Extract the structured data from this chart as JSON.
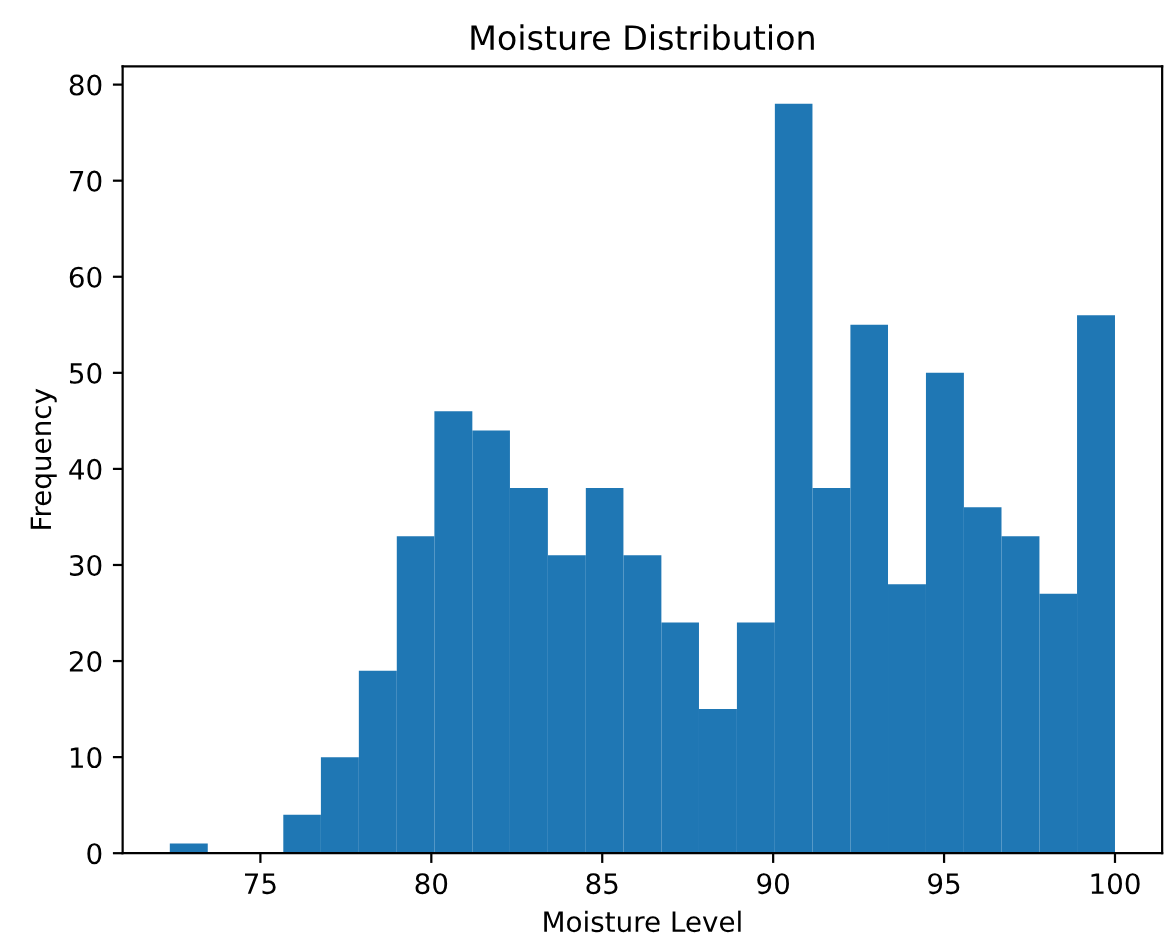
{
  "chart_data": {
    "type": "histogram",
    "title": "Moisture Distribution",
    "xlabel": "Moisture Level",
    "ylabel": "Frequency",
    "bins": [
      72.35,
      73.46,
      74.56,
      75.67,
      76.77,
      77.88,
      78.99,
      80.09,
      81.2,
      82.3,
      83.41,
      84.52,
      85.62,
      86.73,
      87.83,
      88.94,
      90.05,
      91.15,
      92.26,
      93.36,
      94.47,
      95.58,
      96.68,
      97.79,
      98.89,
      100.0
    ],
    "values": [
      1,
      0,
      0,
      4,
      10,
      19,
      33,
      46,
      44,
      38,
      31,
      38,
      31,
      24,
      15,
      24,
      78,
      38,
      55,
      28,
      50,
      36,
      33,
      27,
      56
    ],
    "color": "#1f77b4",
    "xlim": [
      70.97,
      101.38
    ],
    "ylim": [
      0,
      81.9
    ],
    "xticks": [
      75,
      80,
      85,
      90,
      95,
      100
    ],
    "yticks": [
      0,
      10,
      20,
      30,
      40,
      50,
      60,
      70,
      80
    ]
  }
}
